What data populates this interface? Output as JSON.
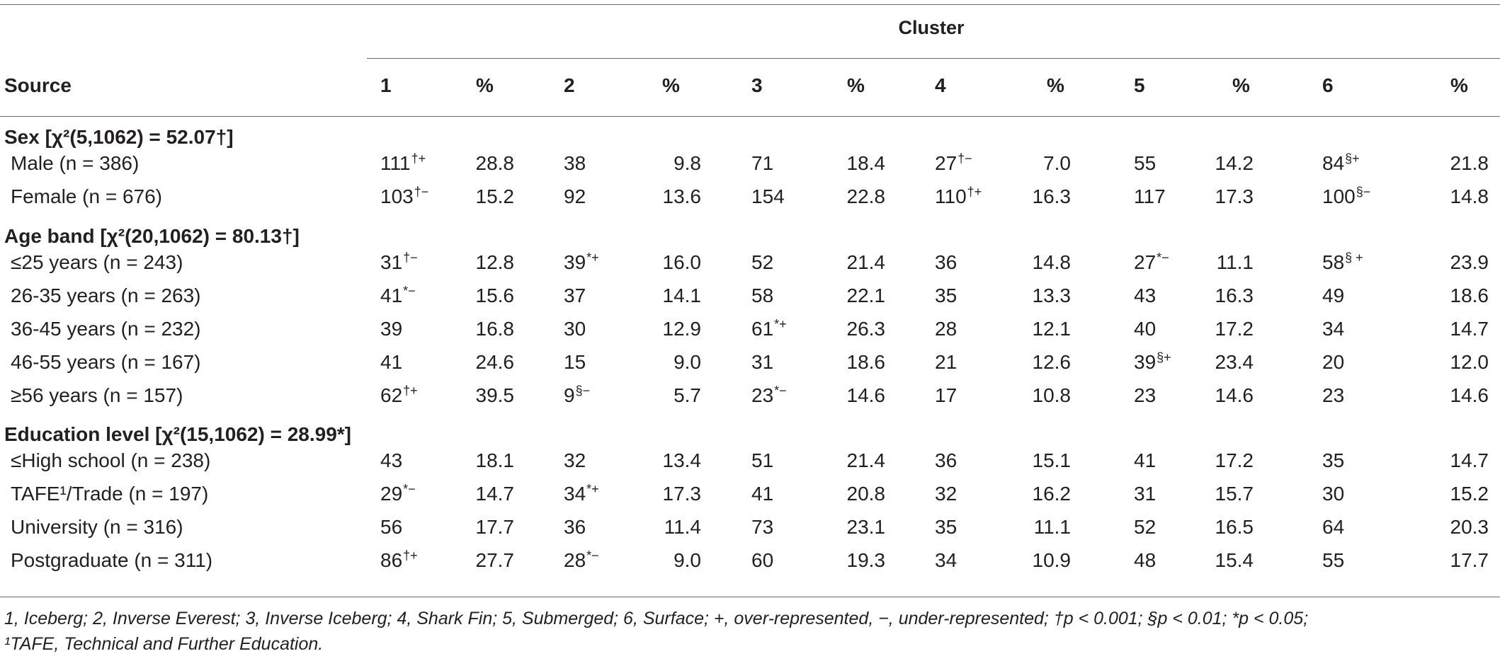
{
  "table": {
    "cluster_title": "Cluster",
    "headers": [
      "Source",
      "1",
      "%",
      "2",
      "%",
      "3",
      "%",
      "4",
      "%",
      "5",
      "%",
      "6",
      "%"
    ],
    "sections": [
      {
        "title": "Sex [χ²(5,1062) = 52.07†]",
        "rows": [
          {
            "label": "Male (n = 386)",
            "cells": [
              {
                "v": "111",
                "s": "†+"
              },
              {
                "v": "28.8"
              },
              {
                "v": "38"
              },
              {
                "v": "9.8"
              },
              {
                "v": "71"
              },
              {
                "v": "18.4"
              },
              {
                "v": "27",
                "s": "†−"
              },
              {
                "v": "7.0"
              },
              {
                "v": "55"
              },
              {
                "v": "14.2"
              },
              {
                "v": "84",
                "s": "§+"
              },
              {
                "v": "21.8"
              }
            ]
          },
          {
            "label": "Female (n = 676)",
            "cells": [
              {
                "v": "103",
                "s": "†−"
              },
              {
                "v": "15.2"
              },
              {
                "v": "92"
              },
              {
                "v": "13.6"
              },
              {
                "v": "154"
              },
              {
                "v": "22.8"
              },
              {
                "v": "110",
                "s": "†+"
              },
              {
                "v": "16.3"
              },
              {
                "v": "117"
              },
              {
                "v": "17.3"
              },
              {
                "v": "100",
                "s": "§−"
              },
              {
                "v": "14.8"
              }
            ]
          }
        ]
      },
      {
        "title": "Age band [χ²(20,1062) = 80.13†]",
        "rows": [
          {
            "label": "≤25 years (n = 243)",
            "cells": [
              {
                "v": "31",
                "s": "†−"
              },
              {
                "v": "12.8"
              },
              {
                "v": "39",
                "s": "*+"
              },
              {
                "v": "16.0"
              },
              {
                "v": "52"
              },
              {
                "v": "21.4"
              },
              {
                "v": "36"
              },
              {
                "v": "14.8"
              },
              {
                "v": "27",
                "s": "*−"
              },
              {
                "v": "11.1"
              },
              {
                "v": "58",
                "s": "§ +"
              },
              {
                "v": "23.9"
              }
            ]
          },
          {
            "label": "26-35 years (n = 263)",
            "cells": [
              {
                "v": "41",
                "s": "*−"
              },
              {
                "v": "15.6"
              },
              {
                "v": "37"
              },
              {
                "v": "14.1"
              },
              {
                "v": "58"
              },
              {
                "v": "22.1"
              },
              {
                "v": "35"
              },
              {
                "v": "13.3"
              },
              {
                "v": "43"
              },
              {
                "v": "16.3"
              },
              {
                "v": "49"
              },
              {
                "v": "18.6"
              }
            ]
          },
          {
            "label": "36-45 years (n = 232)",
            "cells": [
              {
                "v": "39"
              },
              {
                "v": "16.8"
              },
              {
                "v": "30"
              },
              {
                "v": "12.9"
              },
              {
                "v": "61",
                "s": "*+"
              },
              {
                "v": "26.3"
              },
              {
                "v": "28"
              },
              {
                "v": "12.1"
              },
              {
                "v": "40"
              },
              {
                "v": "17.2"
              },
              {
                "v": "34"
              },
              {
                "v": "14.7"
              }
            ]
          },
          {
            "label": "46-55 years (n = 167)",
            "cells": [
              {
                "v": "41"
              },
              {
                "v": "24.6"
              },
              {
                "v": "15"
              },
              {
                "v": "9.0"
              },
              {
                "v": "31"
              },
              {
                "v": "18.6"
              },
              {
                "v": "21"
              },
              {
                "v": "12.6"
              },
              {
                "v": "39",
                "s": "§+"
              },
              {
                "v": "23.4"
              },
              {
                "v": "20"
              },
              {
                "v": "12.0"
              }
            ]
          },
          {
            "label": "≥56 years (n = 157)",
            "cells": [
              {
                "v": "62",
                "s": "†+"
              },
              {
                "v": "39.5"
              },
              {
                "v": "9",
                "s": "§−"
              },
              {
                "v": "5.7"
              },
              {
                "v": "23",
                "s": "*−"
              },
              {
                "v": "14.6"
              },
              {
                "v": "17"
              },
              {
                "v": "10.8"
              },
              {
                "v": "23"
              },
              {
                "v": "14.6"
              },
              {
                "v": "23"
              },
              {
                "v": "14.6"
              }
            ]
          }
        ]
      },
      {
        "title": "Education level [χ²(15,1062) = 28.99*]",
        "rows": [
          {
            "label": "≤High school (n = 238)",
            "cells": [
              {
                "v": "43"
              },
              {
                "v": "18.1"
              },
              {
                "v": "32"
              },
              {
                "v": "13.4"
              },
              {
                "v": "51"
              },
              {
                "v": "21.4"
              },
              {
                "v": "36"
              },
              {
                "v": "15.1"
              },
              {
                "v": "41"
              },
              {
                "v": "17.2"
              },
              {
                "v": "35"
              },
              {
                "v": "14.7"
              }
            ]
          },
          {
            "label": "TAFE¹/Trade (n = 197)",
            "cells": [
              {
                "v": "29",
                "s": "*−"
              },
              {
                "v": "14.7"
              },
              {
                "v": "34",
                "s": "*+"
              },
              {
                "v": "17.3"
              },
              {
                "v": "41"
              },
              {
                "v": "20.8"
              },
              {
                "v": "32"
              },
              {
                "v": "16.2"
              },
              {
                "v": "31"
              },
              {
                "v": "15.7"
              },
              {
                "v": "30"
              },
              {
                "v": "15.2"
              }
            ]
          },
          {
            "label": "University (n = 316)",
            "cells": [
              {
                "v": "56"
              },
              {
                "v": "17.7"
              },
              {
                "v": "36"
              },
              {
                "v": "11.4"
              },
              {
                "v": "73"
              },
              {
                "v": "23.1"
              },
              {
                "v": "35"
              },
              {
                "v": "11.1"
              },
              {
                "v": "52"
              },
              {
                "v": "16.5"
              },
              {
                "v": "64"
              },
              {
                "v": "20.3"
              }
            ]
          },
          {
            "label": "Postgraduate (n = 311)",
            "cells": [
              {
                "v": "86",
                "s": "†+"
              },
              {
                "v": "27.7"
              },
              {
                "v": "28",
                "s": "*−"
              },
              {
                "v": "9.0"
              },
              {
                "v": "60"
              },
              {
                "v": "19.3"
              },
              {
                "v": "34"
              },
              {
                "v": "10.9"
              },
              {
                "v": "48"
              },
              {
                "v": "15.4"
              },
              {
                "v": "55"
              },
              {
                "v": "17.7"
              }
            ]
          }
        ]
      }
    ]
  },
  "footnotes": {
    "line1": "1, Iceberg; 2, Inverse Everest; 3, Inverse Iceberg; 4, Shark Fin; 5, Submerged; 6, Surface; +, over-represented, −, under-represented; †p < 0.001; §p < 0.01; *p < 0.05;",
    "line2": "¹TAFE, Technical and Further Education."
  }
}
